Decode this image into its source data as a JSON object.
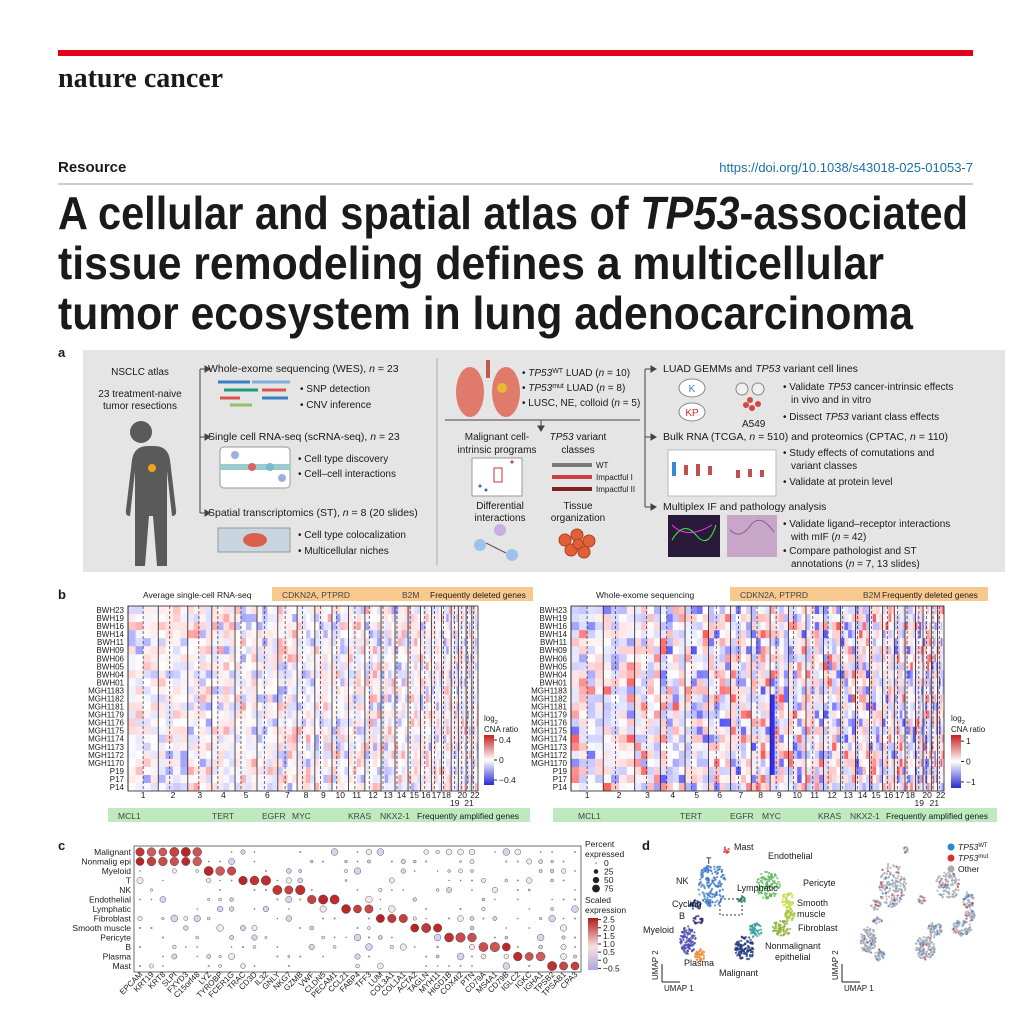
{
  "header": {
    "journal": "nature cancer",
    "section": "Resource",
    "doi": "https://doi.org/10.1038/s43018-025-01053-7"
  },
  "title": {
    "lines": [
      [
        "A cellular and spatial atlas of ",
        "TP53",
        "-associated"
      ],
      "tissue remodeling defines a multicellular",
      "tumor ecosystem in lung adenocarcinoma"
    ]
  },
  "panel_a": {
    "label": "a",
    "atlas": [
      "NSCLC atlas",
      "23 treatment-naive",
      "tumor resections"
    ],
    "wes": {
      "heading": [
        "Whole-exome sequencing (WES), ",
        "n",
        " = 23"
      ],
      "bullets": [
        "• SNP detection",
        "• CNV inference"
      ]
    },
    "scrna": {
      "heading": [
        "Single cell RNA-seq (scRNA-seq), ",
        "n",
        " = 23"
      ],
      "bullets": [
        "• Cell type discovery",
        "• Cell–cell interactions"
      ]
    },
    "st": {
      "heading": [
        "Spatial transcriptomics (ST), ",
        "n",
        " = 8 (20 slides)"
      ],
      "bullets": [
        "• Cell type colocalization",
        "• Multicellular niches"
      ]
    },
    "cohorts": [
      [
        "• ",
        "TP53",
        "WT",
        " LUAD (",
        "n",
        " = 10)"
      ],
      [
        "• ",
        "TP53",
        "mut",
        " LUAD (",
        "n",
        " = 8)"
      ],
      [
        "• LUSC, NE, colloid (",
        "n",
        " = 5)"
      ]
    ],
    "programs": [
      "Malignant cell-",
      "intrinsic programs"
    ],
    "variant_classes": {
      "heading": [
        [
          "TP53",
          " variant"
        ],
        "classes"
      ],
      "legend": [
        "WT",
        "Impactful I",
        "Impactful II"
      ]
    },
    "interactions": [
      "Differential",
      "interactions"
    ],
    "tissue": [
      "Tissue",
      "organization"
    ],
    "gemm": {
      "heading": [
        "LUAD GEMMs and ",
        "TP53",
        " variant cell lines"
      ],
      "icons": [
        "K",
        "KP",
        "A549"
      ],
      "bullets": [
        [
          "• Validate ",
          "TP53",
          " cancer-intrinsic effects"
        ],
        "in vivo and in vitro",
        [
          "• Dissect ",
          "TP53",
          " variant class effects"
        ]
      ]
    },
    "bulk": {
      "heading": [
        "Bulk RNA (TCGA, ",
        "n",
        " = 510) and proteomics (CPTAC, ",
        "n",
        " = 110)"
      ],
      "bullets": [
        "• Study effects of comutations and",
        "variant classes",
        "• Validate at protein level"
      ]
    },
    "mif": {
      "heading": "Multiplex IF and pathology analysis",
      "bullets": [
        "• Validate ligand–receptor interactions",
        [
          "with mIF (",
          "n",
          " = 42)"
        ],
        "• Compare pathologist and ST",
        [
          "annotations (",
          "n",
          " = 7, 13 slides)"
        ]
      ]
    }
  },
  "panel_b": {
    "label": "b",
    "titles": [
      "Average single-cell RNA-seq",
      "Whole-exome sequencing"
    ],
    "samples": [
      "BWH23",
      "BWH19",
      "BWH16",
      "BWH14",
      "BWH11",
      "BWH09",
      "BWH06",
      "BWH05",
      "BWH04",
      "BWH01",
      "MGH1183",
      "MGH1182",
      "MGH1181",
      "MGH1179",
      "MGH1176",
      "MGH1175",
      "MGH1174",
      "MGH1173",
      "MGH1172",
      "MGH1170",
      "P19",
      "P17",
      "P14"
    ],
    "chromosomes": [
      "1",
      "2",
      "3",
      "4",
      "5",
      "6",
      "7",
      "8",
      "9",
      "10",
      "11",
      "12",
      "13",
      "14",
      "15",
      "16",
      "17",
      "18",
      "19",
      "20",
      "21",
      "22"
    ],
    "deleted": {
      "genes": [
        "CDKN2A, PTPRD",
        "B2M"
      ],
      "label": "Frequently deleted genes"
    },
    "amplified": {
      "genes": [
        "MCL1",
        "TERT",
        "EGFR",
        "MYC",
        "KRAS",
        "NKX2-1"
      ],
      "label": "Frequently amplified genes"
    },
    "colorbar_title": [
      [
        "log",
        "2"
      ],
      "CNA ratio"
    ],
    "colorbars": [
      {
        "lim": [
          -0.5,
          0.5
        ],
        "ticks": [
          0.4,
          0,
          {
            "value": -0.4,
            "label": "−0.4"
          }
        ]
      },
      {
        "lim": [
          -1.3,
          1.3
        ],
        "ticks": [
          1,
          0,
          {
            "value": -1,
            "label": "−1"
          }
        ]
      }
    ]
  },
  "panel_c": {
    "label": "c",
    "cell_types": [
      "Malignant",
      "Nonmalig epi",
      "Myeloid",
      "T",
      "NK",
      "Endothelial",
      "Lymphatic",
      "Fibroblast",
      "Smooth muscle",
      "Pericyte",
      "B",
      "Plasma",
      "Mast"
    ],
    "genes": [
      "EPCAM",
      "KRT19",
      "KRT8",
      "SLPI",
      "FXYD3",
      "C15orf48",
      "LYZ",
      "TYROBP",
      "FCER1G",
      "TRAC",
      "CD3D",
      "IL32",
      "GNLY",
      "NKG7",
      "GZMB",
      "VWF",
      "CLDN5",
      "PECAM1",
      "CCL21",
      "FABP4",
      "TFF3",
      "LUM",
      "COL3A1",
      "COL1A1",
      "ACTA2",
      "TAGLN",
      "MYH11",
      "HIGD1B",
      "COX4I2",
      "PTN",
      "CD79A",
      "MS4A1",
      "CD79B",
      "IGLC2",
      "IGKC",
      "IGHA1",
      "TPSB2",
      "TPSAB1",
      "CPA3"
    ],
    "size_legend": {
      "title": [
        "Percent",
        "expressed"
      ],
      "ticks": [
        0,
        25,
        50,
        75
      ]
    },
    "color_legend": {
      "title": [
        "Scaled",
        "expression"
      ],
      "lim": [
        -0.6,
        2.6
      ],
      "ticks": [
        2.5,
        {
          "value": 2,
          "label": "2.0"
        },
        1.5,
        {
          "value": 1,
          "label": "1.0"
        },
        0.5,
        0,
        {
          "value": -0.5,
          "label": "−0.5"
        }
      ]
    }
  },
  "panel_d": {
    "label": "d",
    "clusters": [
      "Mast",
      "Endothelial",
      "T",
      "NK",
      "Lymphatic",
      "Pericyte",
      "Cycling",
      "B",
      [
        "Smooth",
        "muscle"
      ],
      "Fibroblast",
      "Myeloid",
      [
        "Nonmalignant",
        "epithelial"
      ],
      "Plasma",
      "Malignant"
    ],
    "axes": [
      "UMAP 1",
      "UMAP 2"
    ],
    "legend": [
      [
        "TP53",
        "WT"
      ],
      [
        "TP53",
        "mut"
      ],
      "Other"
    ]
  }
}
